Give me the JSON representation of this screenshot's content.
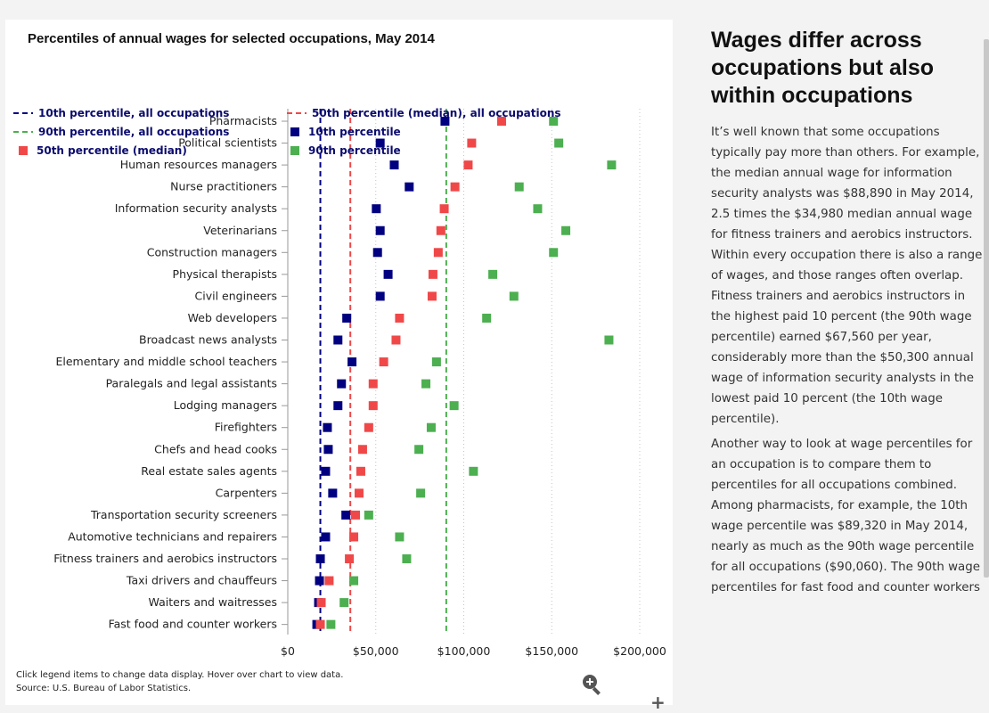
{
  "chart_data": {
    "type": "scatter",
    "title": "Percentiles of annual wages for selected occupations, May 2014",
    "categories": [
      "Pharmacists",
      "Political scientists",
      "Human resources managers",
      "Nurse practitioners",
      "Information security analysts",
      "Veterinarians",
      "Construction managers",
      "Physical therapists",
      "Civil engineers",
      "Web developers",
      "Broadcast news analysts",
      "Elementary and middle school teachers",
      "Paralegals and legal assistants",
      "Lodging managers",
      "Firefighters",
      "Chefs and head cooks",
      "Real estate sales agents",
      "Carpenters",
      "Transportation security screeners",
      "Automotive technicians and repairers",
      "Fitness trainers and aerobics instructors",
      "Taxi drivers and chauffeurs",
      "Waiters and waitresses",
      "Fast food and counter workers"
    ],
    "series": [
      {
        "name": "10th percentile",
        "color": "#000080",
        "values": [
          89320,
          52500,
          60500,
          69000,
          50300,
          52500,
          51000,
          57000,
          52500,
          33500,
          28500,
          36500,
          30500,
          28500,
          22500,
          23000,
          21500,
          25500,
          33000,
          21500,
          18500,
          18000,
          17500,
          16500
        ]
      },
      {
        "name": "50th percentile (median)",
        "color": "#f04848",
        "values": [
          121500,
          104500,
          102500,
          95000,
          88890,
          87000,
          85500,
          82500,
          82000,
          63500,
          61500,
          54500,
          48500,
          48500,
          46000,
          42500,
          41500,
          40500,
          38500,
          37500,
          34980,
          23500,
          19000,
          18500
        ]
      },
      {
        "name": "90th percentile",
        "color": "#4caf50",
        "values": [
          151000,
          154000,
          184000,
          131500,
          142000,
          158000,
          151000,
          116500,
          128500,
          113000,
          182500,
          84500,
          78500,
          94500,
          81500,
          74500,
          105500,
          75500,
          46000,
          63500,
          67560,
          37500,
          32000,
          24500
        ]
      }
    ],
    "reference_lines": [
      {
        "name": "10th percentile, all occupations",
        "value": 18500,
        "color": "#000080"
      },
      {
        "name": "50th percentile (median), all occupations",
        "value": 35540,
        "color": "#f04848"
      },
      {
        "name": "90th percentile, all occupations",
        "value": 90060,
        "color": "#4caf50"
      }
    ],
    "xaxis": {
      "ticks": [
        0,
        50000,
        100000,
        150000,
        200000
      ],
      "tick_labels": [
        "$0",
        "$50,000",
        "$100,000",
        "$150,000",
        "$200,000"
      ],
      "range": [
        0,
        200000
      ]
    },
    "legend": {
      "placement": "top-left",
      "items": [
        "10th percentile, all occupations",
        "90th percentile, all occupations",
        "50th percentile (median)",
        "50th percentile (median), all occupations",
        "10th percentile",
        "90th percentile"
      ]
    },
    "grid": "vertical-dotted"
  },
  "chart_note": {
    "line1": "Click legend items to change data display. Hover over chart to view data.",
    "line2": "Source: U.S. Bureau of Labor Statistics."
  },
  "side": {
    "heading": "Wages differ across occupations but also within occupations",
    "paragraphs": [
      "It’s well known that some occupations typically pay more than others. For example, the median annual wage for information security analysts was $88,890 in May 2014, 2.5 times the $34,980 median annual wage for fitness trainers and aerobics instructors. Within every occupation there is also a range of wages, and those ranges often overlap. Fitness trainers and aerobics instructors in the highest paid 10 percent (the 90th wage percentile) earned $67,560 per year, considerably more than the $50,300 annual wage of information security analysts in the lowest paid 10 percent (the 10th wage percentile).",
      "Another way to look at wage percentiles for an occupation is to compare them to percentiles for all occupations combined. Among pharmacists, for example, the 10th wage percentile was $89,320 in May 2014, nearly as much as the 90th wage percentile for all occupations ($90,060). The 90th wage percentiles for fast food and counter workers"
    ]
  },
  "icons": {
    "zoom": "zoom-in-icon",
    "expand": "plus-icon"
  }
}
